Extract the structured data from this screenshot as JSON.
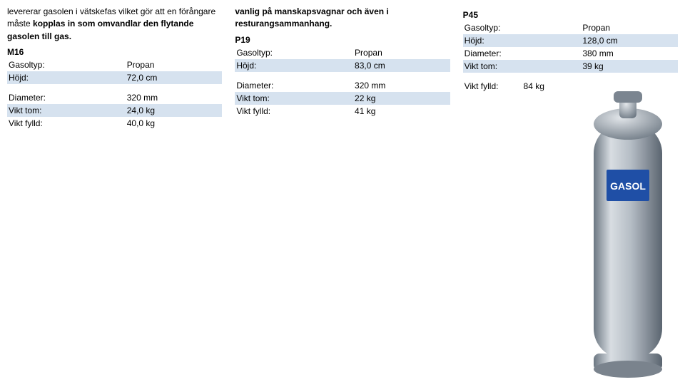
{
  "col1": {
    "intro_html": "levererar gasolen i vätskefas vilket gör att en förångare måste <b>kopplas in som omvandlar den flytande gasolen till gas.</b>",
    "model": "M16",
    "specs_top": [
      {
        "label": "Gasoltyp:",
        "value": "Propan",
        "band": false
      },
      {
        "label": "Höjd:",
        "value": "72,0 cm",
        "band": true
      }
    ],
    "specs_bottom": [
      {
        "label": "Diameter:",
        "value": "320 mm",
        "band": false
      },
      {
        "label": "Vikt tom:",
        "value": "24,0 kg",
        "band": true
      },
      {
        "label": "Vikt fylld:",
        "value": "40,0 kg",
        "band": false
      }
    ]
  },
  "col2": {
    "intro_html": "<b>vanlig på manskapsvagnar och även i resturangsammanhang.</b>",
    "model": "P19",
    "specs_top": [
      {
        "label": "Gasoltyp:",
        "value": "Propan",
        "band": false
      },
      {
        "label": "Höjd:",
        "value": "83,0 cm",
        "band": true
      }
    ],
    "specs_bottom": [
      {
        "label": "Diameter:",
        "value": "320 mm",
        "band": false
      },
      {
        "label": "Vikt tom:",
        "value": "22 kg",
        "band": true
      },
      {
        "label": "Vikt fylld:",
        "value": "41 kg",
        "band": false
      }
    ]
  },
  "col3": {
    "model": "P45",
    "specs_top": [
      {
        "label": "Gasoltyp:",
        "value": "Propan",
        "band": false
      },
      {
        "label": "Höjd:",
        "value": "128,0 cm",
        "band": true
      },
      {
        "label": "Diameter:",
        "value": "380 mm",
        "band": false
      },
      {
        "label": "Vikt tom:",
        "value": "39 kg",
        "band": true
      }
    ],
    "specs_bottom": [
      {
        "label": "Vikt fylld:",
        "value": "84 kg",
        "band": false
      }
    ],
    "cylinder": {
      "body_color": "#9aa4ad",
      "body_hi": "#d8dde2",
      "body_lo": "#6c7782",
      "label_bg": "#1f4fa6",
      "label_text": "GASOL",
      "label_text_color": "#ffffff"
    }
  },
  "colors": {
    "band": "#d6e2ef"
  }
}
